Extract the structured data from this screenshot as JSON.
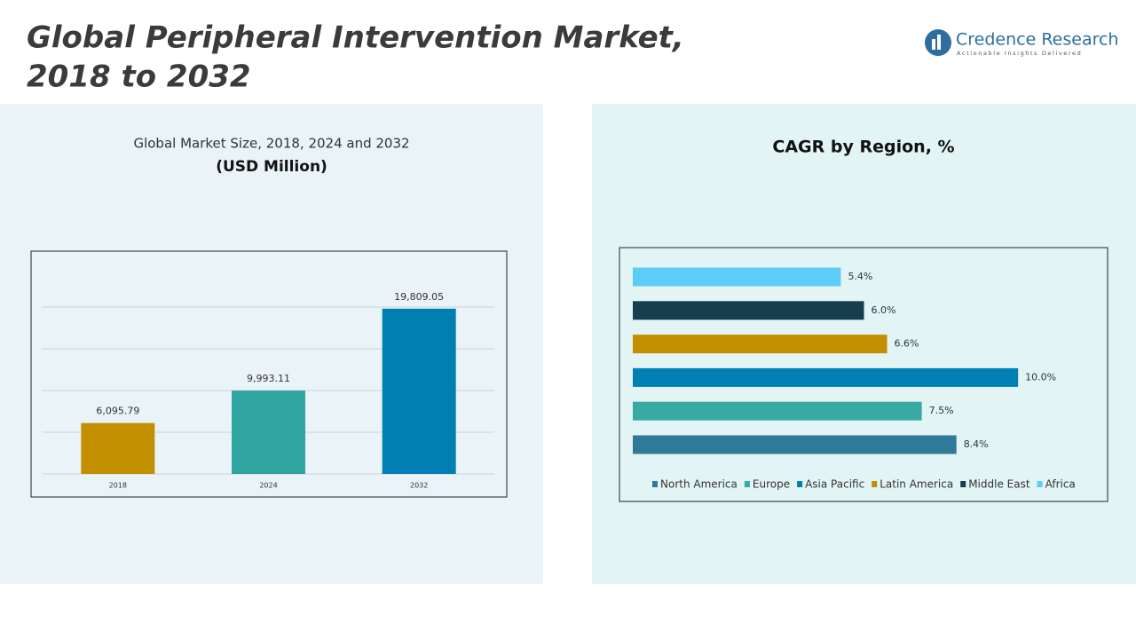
{
  "header": {
    "title_lines": [
      "Global Peripheral Intervention Market,",
      "2018 to 2032"
    ],
    "logo_name": "Credence Research",
    "logo_tagline": "Actionable Insights Delivered"
  },
  "chart_data": [
    {
      "type": "bar",
      "title": "Global Market Size, 2018, 2024 and 2032",
      "subtitle": "(USD Million)",
      "categories": [
        "2018",
        "2024",
        "2032"
      ],
      "values": [
        6095.79,
        9993.11,
        19809.05
      ],
      "value_labels": [
        "6,095.79",
        "9,993.11",
        "19,809.05"
      ],
      "colors": [
        "#c28f00",
        "#30a4a0",
        "#0080b2"
      ],
      "ylim": [
        0,
        20000
      ],
      "yticks": [
        0,
        5000,
        10000,
        15000,
        20000
      ],
      "show_tick_labels": false,
      "grid": true
    },
    {
      "type": "barh",
      "title": "CAGR by Region, %",
      "categories": [
        "North America",
        "Europe",
        "Asia Pacific",
        "Latin America",
        "Middle East",
        "Africa"
      ],
      "values": [
        8.4,
        7.5,
        10.0,
        6.6,
        6.0,
        5.4
      ],
      "value_labels": [
        "8.4%",
        "7.5%",
        "10.0%",
        "6.6%",
        "6.0%",
        "5.4%"
      ],
      "colors": [
        "#2f7a98",
        "#38aaa3",
        "#0080b5",
        "#c18f00",
        "#173e4f",
        "#5ccdf7"
      ],
      "xlim": [
        0,
        12
      ],
      "legend": "bottom"
    }
  ]
}
